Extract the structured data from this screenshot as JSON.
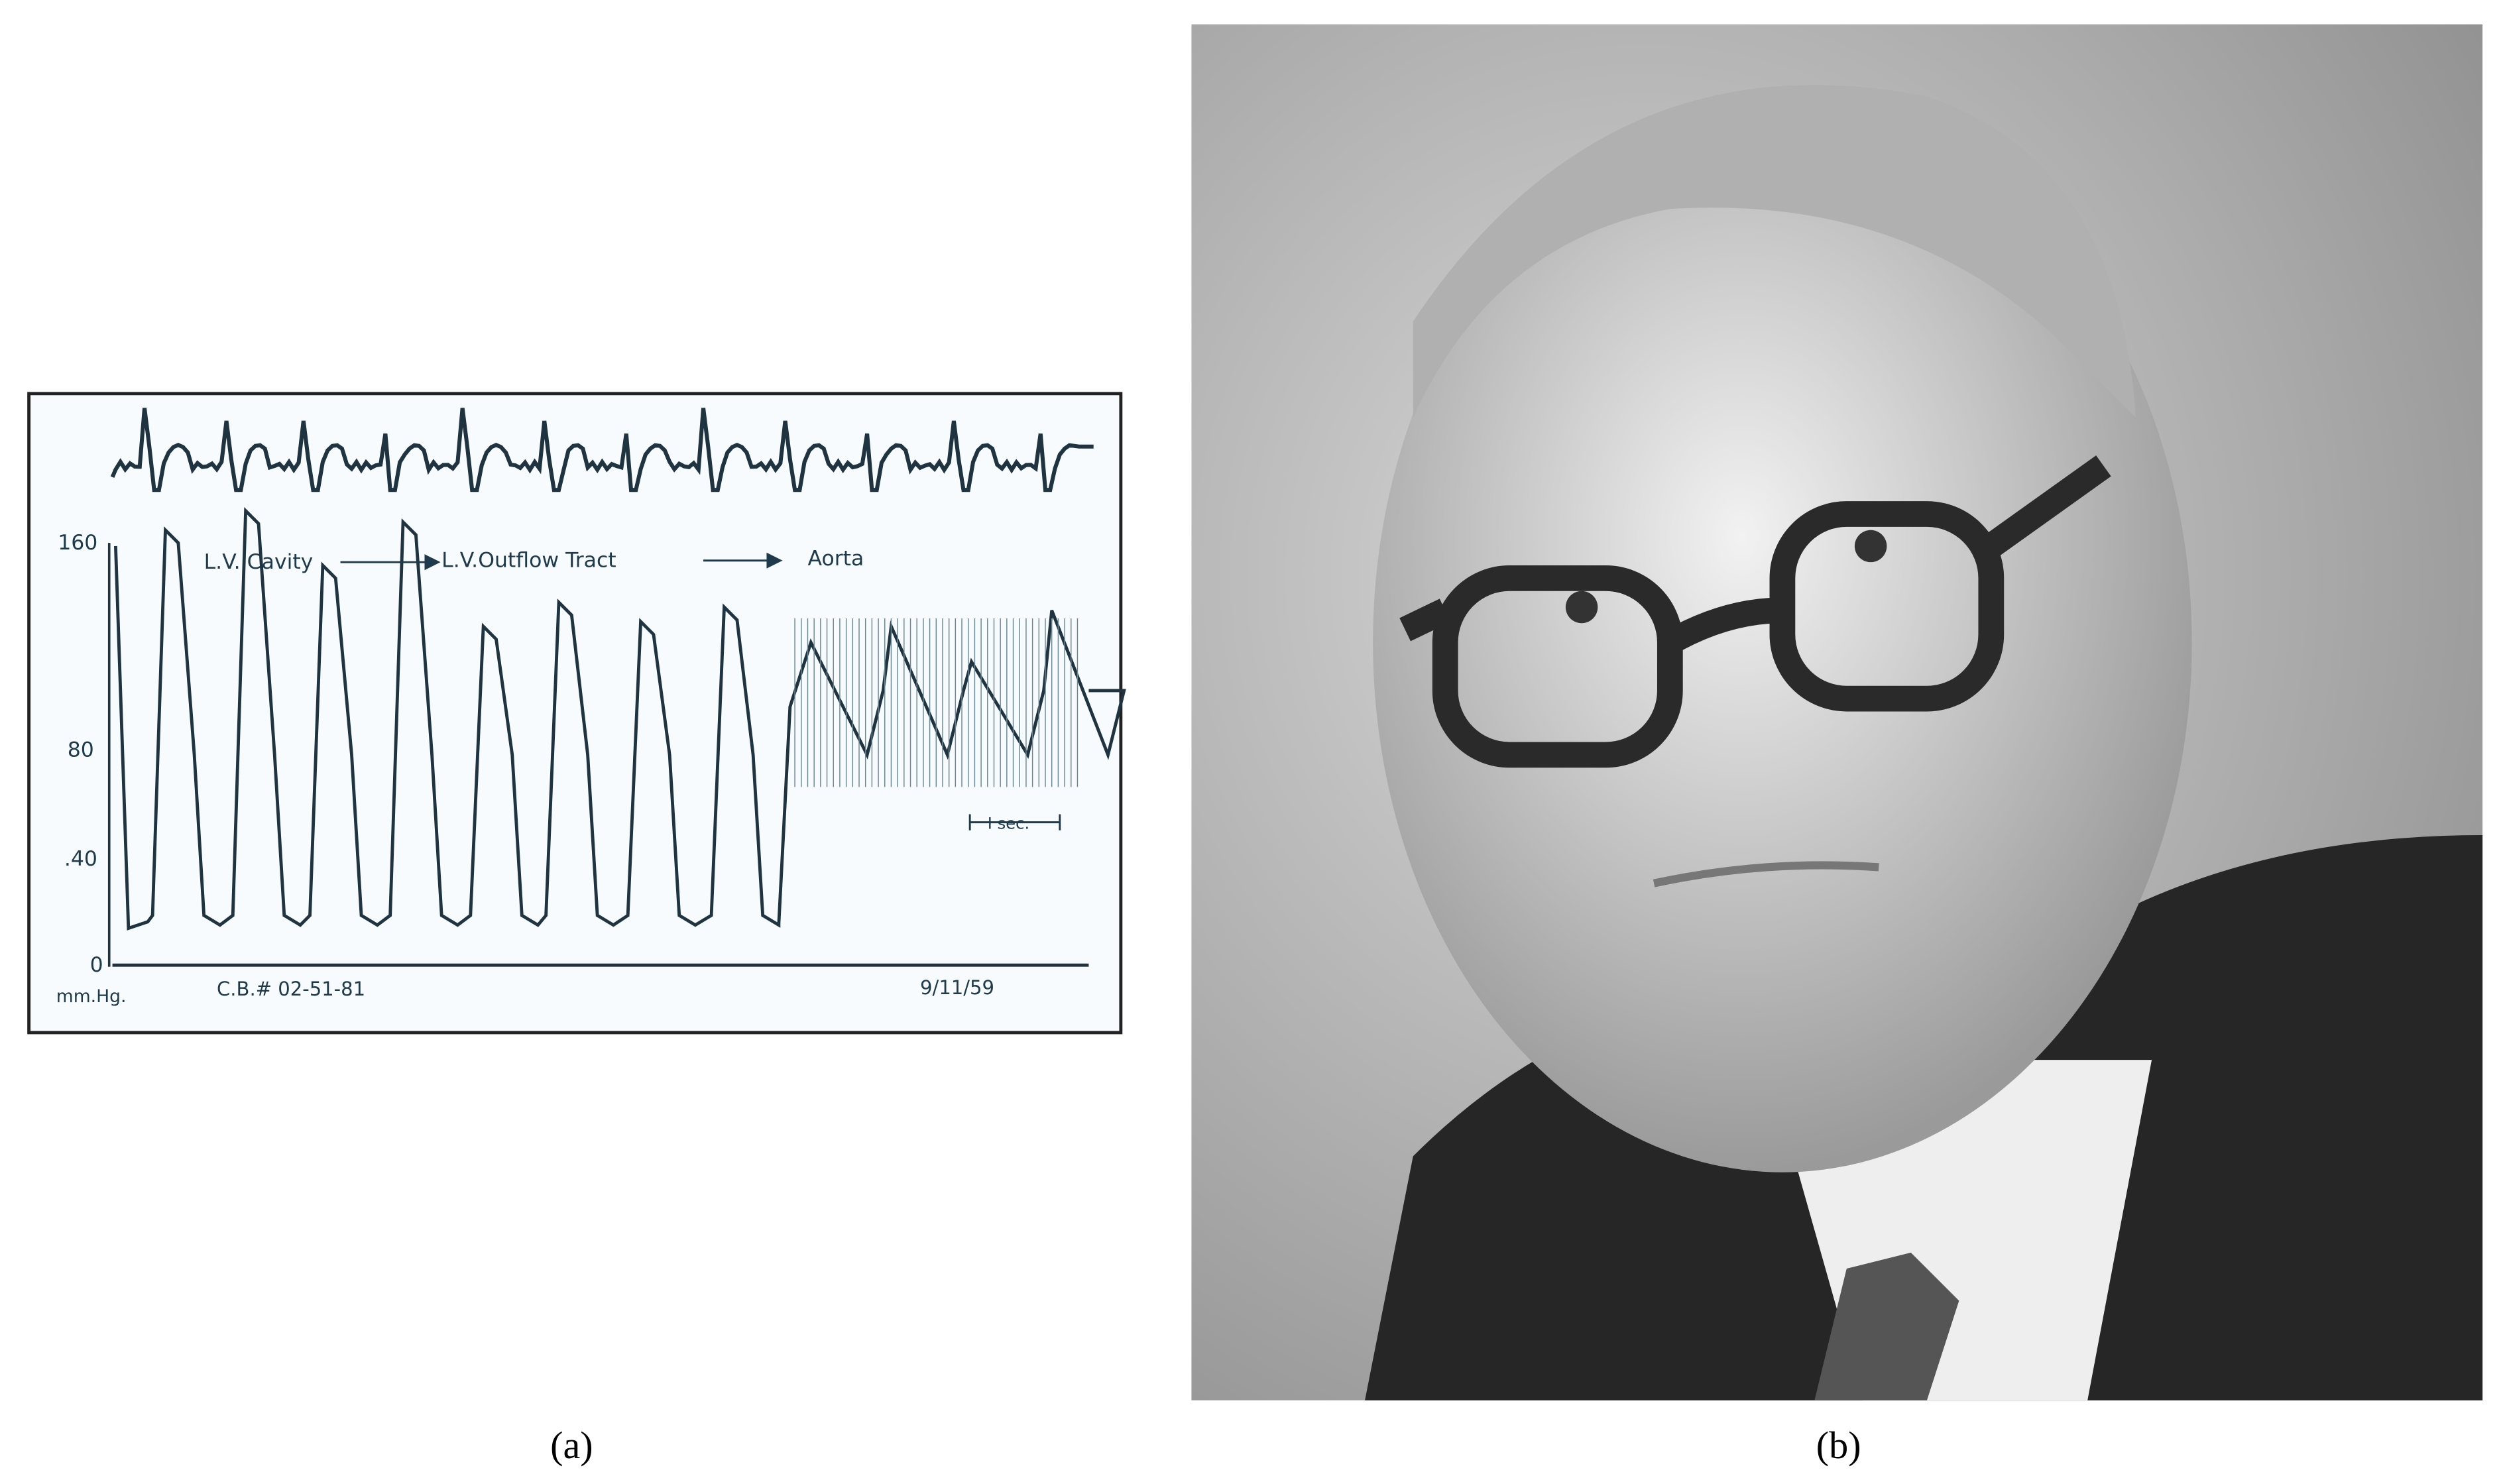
{
  "figure": {
    "panels": [
      {
        "caption": "(a)",
        "axis_labels": [
          "160",
          "80",
          ".40",
          "0"
        ],
        "annotations": [
          "L.V. Cavity",
          "L.V.Outflow Tract",
          "Aorta",
          "I sec."
        ],
        "footer": [
          "mm.Hg.",
          "C.B.# 02-51-81",
          "9/11/59"
        ]
      },
      {
        "caption": "(b)"
      }
    ]
  }
}
